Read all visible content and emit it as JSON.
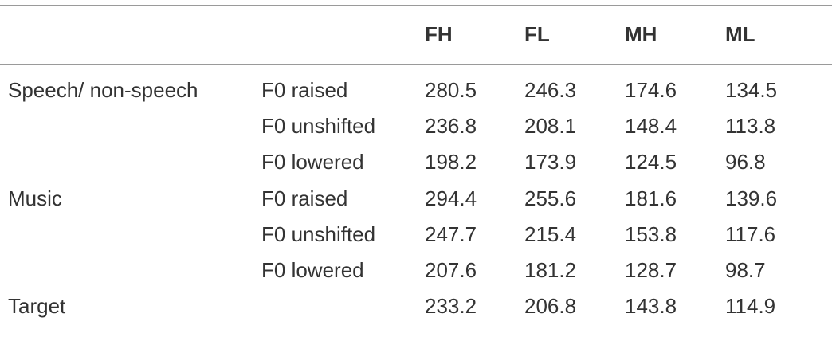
{
  "table": {
    "header": [
      "FH",
      "FL",
      "MH",
      "ML"
    ],
    "rows": [
      {
        "group": "Speech/ non-speech",
        "condition": "F0 raised",
        "values": [
          "280.5",
          "246.3",
          "174.6",
          "134.5"
        ]
      },
      {
        "condition": "F0 unshifted",
        "values": [
          "236.8",
          "208.1",
          "148.4",
          "113.8"
        ]
      },
      {
        "condition": "F0 lowered",
        "values": [
          "198.2",
          "173.9",
          "124.5",
          "96.8"
        ]
      },
      {
        "group": "Music",
        "condition": "F0 raised",
        "values": [
          "294.4",
          "255.6",
          "181.6",
          "139.6"
        ]
      },
      {
        "condition": "F0 unshifted",
        "values": [
          "247.7",
          "215.4",
          "153.8",
          "117.6"
        ]
      },
      {
        "condition": "F0 lowered",
        "values": [
          "207.6",
          "181.2",
          "128.7",
          "98.7"
        ]
      },
      {
        "group": "Target",
        "values": [
          "233.2",
          "206.8",
          "143.8",
          "114.9"
        ]
      }
    ]
  }
}
